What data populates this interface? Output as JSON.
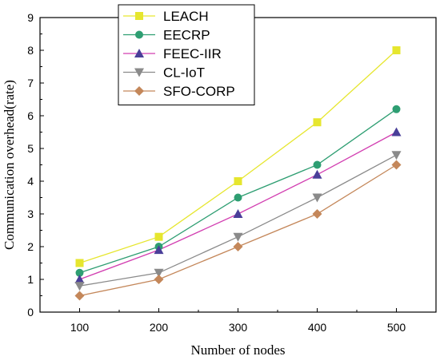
{
  "chart_data": {
    "type": "line",
    "xlabel": "Number of nodes",
    "ylabel": "Communication overhead(rate)",
    "x": [
      100,
      200,
      300,
      400,
      500
    ],
    "xlim": [
      50,
      550
    ],
    "ylim": [
      0,
      9
    ],
    "xticks": [
      "100",
      "200",
      "300",
      "400",
      "500"
    ],
    "yticks": [
      "0",
      "1",
      "2",
      "3",
      "4",
      "5",
      "6",
      "7",
      "8",
      "9"
    ],
    "grid": false,
    "legend_position": "top-left",
    "series": [
      {
        "name": "LEACH",
        "values": [
          1.5,
          2.3,
          4.0,
          5.8,
          8.0
        ],
        "color": "#e6e62e",
        "marker": "square"
      },
      {
        "name": "EECRP",
        "values": [
          1.2,
          2.0,
          3.5,
          4.5,
          6.2
        ],
        "color": "#2e9e72",
        "marker": "circle"
      },
      {
        "name": "FEEC-IIR",
        "values": [
          1.0,
          1.9,
          3.0,
          4.2,
          5.5
        ],
        "color": "#4a3f99",
        "marker": "triangle-up",
        "line_color": "#d23fb1"
      },
      {
        "name": "CL-IoT",
        "values": [
          0.8,
          1.2,
          2.3,
          3.5,
          4.8
        ],
        "color": "#8a8a8a",
        "marker": "triangle-down"
      },
      {
        "name": "SFO-CORP",
        "values": [
          0.5,
          1.0,
          2.0,
          3.0,
          4.5
        ],
        "color": "#c4875a",
        "marker": "diamond",
        "line_color": "#c4875a"
      }
    ]
  }
}
